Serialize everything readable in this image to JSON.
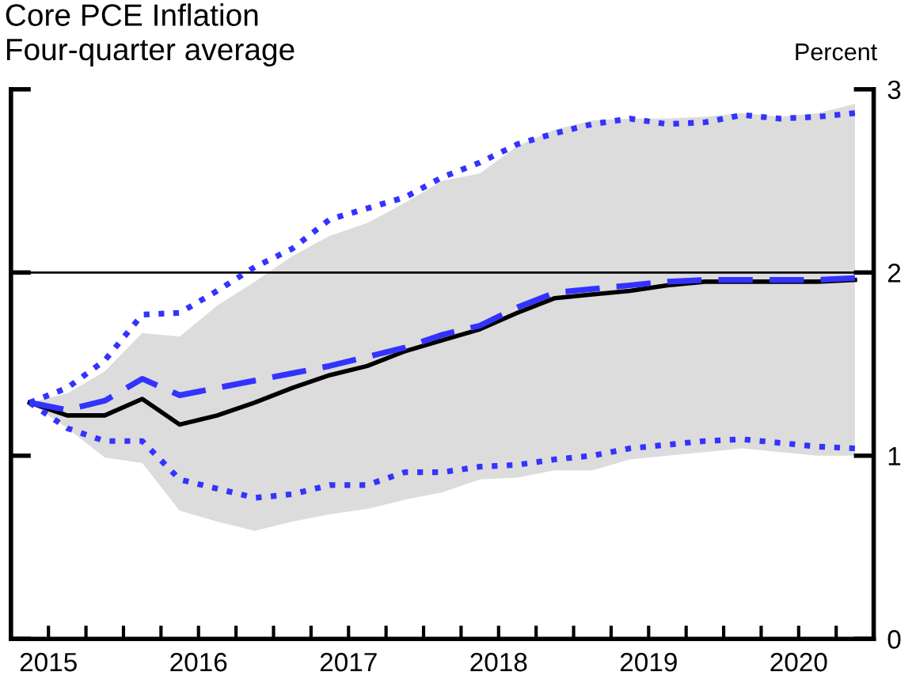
{
  "chart_data": {
    "type": "line",
    "title": "Core PCE Inflation",
    "subtitle": "Four-quarter average",
    "ylabel": "Percent",
    "x": [
      2015.375,
      2015.625,
      2015.875,
      2016.125,
      2016.375,
      2016.625,
      2016.875,
      2017.125,
      2017.375,
      2017.625,
      2017.875,
      2018.125,
      2018.375,
      2018.625,
      2018.875,
      2019.125,
      2019.375,
      2019.625,
      2019.875,
      2020.125,
      2020.375,
      2020.625,
      2020.875
    ],
    "series": [
      {
        "color": "#000000",
        "line_style": "solid",
        "values": [
          1.29,
          1.22,
          1.22,
          1.31,
          1.17,
          1.22,
          1.29,
          1.37,
          1.44,
          1.49,
          1.57,
          1.63,
          1.69,
          1.78,
          1.86,
          1.88,
          1.9,
          1.93,
          1.95,
          1.95,
          1.95,
          1.95,
          1.96
        ],
        "lower": [
          1.29,
          1.15,
          0.99,
          0.96,
          0.7,
          0.64,
          0.59,
          0.64,
          0.68,
          0.71,
          0.76,
          0.8,
          0.87,
          0.88,
          0.92,
          0.92,
          0.98,
          1.0,
          1.02,
          1.04,
          1.02,
          1.0,
          1.0
        ],
        "upper": [
          1.29,
          1.34,
          1.46,
          1.67,
          1.65,
          1.82,
          1.95,
          2.09,
          2.2,
          2.27,
          2.38,
          2.5,
          2.54,
          2.69,
          2.78,
          2.83,
          2.84,
          2.84,
          2.85,
          2.87,
          2.85,
          2.87,
          2.92
        ]
      },
      {
        "color": "#3333ff",
        "line_style": "dashed",
        "values": [
          1.29,
          1.25,
          1.3,
          1.42,
          1.33,
          1.37,
          1.41,
          1.45,
          1.49,
          1.54,
          1.59,
          1.66,
          1.71,
          1.81,
          1.89,
          1.91,
          1.93,
          1.95,
          1.96,
          1.96,
          1.96,
          1.96,
          1.97
        ]
      },
      {
        "color": "#3333ff",
        "line_style": "dotted",
        "values": [
          1.29,
          1.37,
          1.52,
          1.77,
          1.78,
          1.9,
          2.03,
          2.13,
          2.29,
          2.35,
          2.41,
          2.52,
          2.6,
          2.7,
          2.76,
          2.81,
          2.84,
          2.81,
          2.82,
          2.86,
          2.84,
          2.85,
          2.87
        ]
      },
      {
        "color": "#3333ff",
        "line_style": "dotted",
        "values": [
          1.29,
          1.15,
          1.08,
          1.08,
          0.87,
          0.82,
          0.77,
          0.79,
          0.84,
          0.84,
          0.91,
          0.91,
          0.94,
          0.95,
          0.98,
          1.0,
          1.04,
          1.06,
          1.08,
          1.09,
          1.07,
          1.05,
          1.04
        ]
      }
    ],
    "xlim": [
      2015.25,
      2021
    ],
    "xticks": [
      {
        "value": 2015.5,
        "label": "2015"
      },
      {
        "value": 2015.75,
        "label": null
      },
      {
        "value": 2016,
        "label": null
      },
      {
        "value": 2016.25,
        "label": null
      },
      {
        "value": 2016.5,
        "label": "2016"
      },
      {
        "value": 2016.75,
        "label": null
      },
      {
        "value": 2017,
        "label": null
      },
      {
        "value": 2017.25,
        "label": null
      },
      {
        "value": 2017.5,
        "label": "2017"
      },
      {
        "value": 2017.75,
        "label": null
      },
      {
        "value": 2018,
        "label": null
      },
      {
        "value": 2018.25,
        "label": null
      },
      {
        "value": 2018.5,
        "label": "2018"
      },
      {
        "value": 2018.75,
        "label": null
      },
      {
        "value": 2019,
        "label": null
      },
      {
        "value": 2019.25,
        "label": null
      },
      {
        "value": 2019.5,
        "label": "2019"
      },
      {
        "value": 2019.75,
        "label": null
      },
      {
        "value": 2020,
        "label": null
      },
      {
        "value": 2020.25,
        "label": null
      },
      {
        "value": 2020.5,
        "label": "2020"
      },
      {
        "value": 2020.75,
        "label": null
      }
    ],
    "ylim": [
      0,
      3
    ],
    "yticks": [
      0,
      1,
      2,
      3
    ],
    "ref_lines": [
      {
        "axis": "y",
        "value": 2,
        "color": "#000000"
      }
    ],
    "grid": false,
    "legend": false
  }
}
